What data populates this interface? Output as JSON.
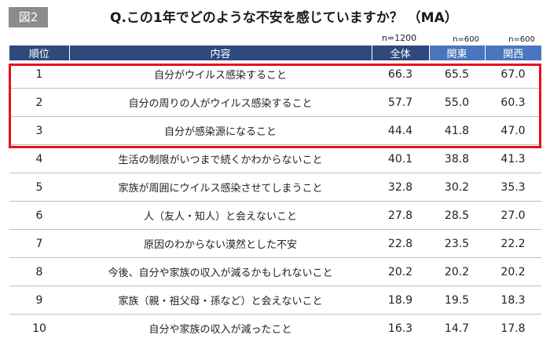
{
  "figure_label": "図2",
  "title": "Q.この1年でどのような不安を感じていますか？ （MA）",
  "counts": {
    "total": "n=1200",
    "kanto": "n=600",
    "kansai": "n=600"
  },
  "headers": {
    "rank": "順位",
    "content": "内容",
    "total": "全体",
    "kanto": "関東",
    "kansai": "関西"
  },
  "rows": [
    {
      "rank": "1",
      "content": "自分がウイルス感染すること",
      "total": "66.3",
      "kanto": "65.5",
      "kansai": "67.0"
    },
    {
      "rank": "2",
      "content": "自分の周りの人がウイルス感染すること",
      "total": "57.7",
      "kanto": "55.0",
      "kansai": "60.3"
    },
    {
      "rank": "3",
      "content": "自分が感染源になること",
      "total": "44.4",
      "kanto": "41.8",
      "kansai": "47.0"
    },
    {
      "rank": "4",
      "content": "生活の制限がいつまで続くかわからないこと",
      "total": "40.1",
      "kanto": "38.8",
      "kansai": "41.3"
    },
    {
      "rank": "5",
      "content": "家族が周囲にウイルス感染させてしまうこと",
      "total": "32.8",
      "kanto": "30.2",
      "kansai": "35.3"
    },
    {
      "rank": "6",
      "content": "人（友人・知人）と会えないこと",
      "total": "27.8",
      "kanto": "28.5",
      "kansai": "27.0"
    },
    {
      "rank": "7",
      "content": "原因のわからない漠然とした不安",
      "total": "22.8",
      "kanto": "23.5",
      "kansai": "22.2"
    },
    {
      "rank": "8",
      "content": "今後、自分や家族の収入が減るかもしれないこと",
      "total": "20.2",
      "kanto": "20.2",
      "kansai": "20.2"
    },
    {
      "rank": "9",
      "content": "家族（親・祖父母・孫など）と会えないこと",
      "total": "18.9",
      "kanto": "19.5",
      "kansai": "18.3"
    },
    {
      "rank": "10",
      "content": "自分や家族の収入が減ったこと",
      "total": "16.3",
      "kanto": "14.7",
      "kansai": "17.8"
    }
  ],
  "highlight_color": "#e8121b",
  "header_colors": {
    "dark": "#2e4a7d",
    "blue": "#4a76bf"
  },
  "chart_data": {
    "type": "table",
    "title": "Q.この1年でどのような不安を感じていますか？ （MA）",
    "columns": [
      "順位",
      "内容",
      "全体",
      "関東",
      "関西"
    ],
    "categories": [
      "自分がウイルス感染すること",
      "自分の周りの人がウイルス感染すること",
      "自分が感染源になること",
      "生活の制限がいつまで続くかわからないこと",
      "家族が周囲にウイルス感染させてしまうこと",
      "人（友人・知人）と会えないこと",
      "原因のわからない漠然とした不安",
      "今後、自分や家族の収入が減るかもしれないこと",
      "家族（親・祖父母・孫など）と会えないこと",
      "自分や家族の収入が減ったこと"
    ],
    "series": [
      {
        "name": "全体",
        "values": [
          66.3,
          57.7,
          44.4,
          40.1,
          32.8,
          27.8,
          22.8,
          20.2,
          18.9,
          16.3
        ]
      },
      {
        "name": "関東",
        "values": [
          65.5,
          55.0,
          41.8,
          38.8,
          30.2,
          28.5,
          23.5,
          20.2,
          19.5,
          14.7
        ]
      },
      {
        "name": "関西",
        "values": [
          67.0,
          60.3,
          47.0,
          41.3,
          35.3,
          27.0,
          22.2,
          20.2,
          18.3,
          17.8
        ]
      }
    ]
  }
}
